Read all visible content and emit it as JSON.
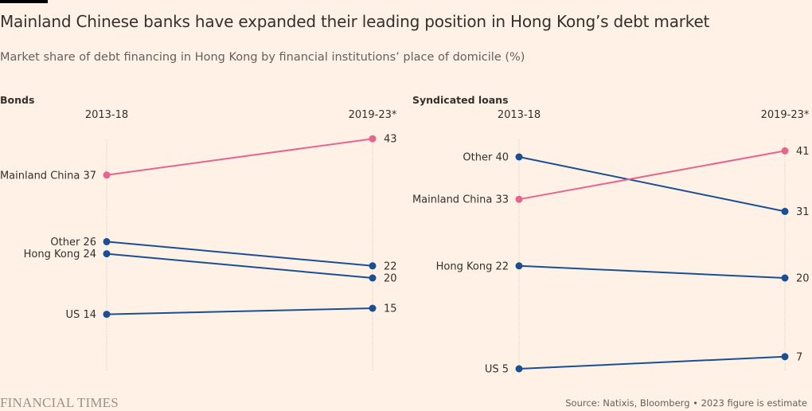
{
  "header": {
    "title": "Mainland Chinese banks have expanded their leading position in Hong Kong’s debt market",
    "subtitle": "Market share of debt financing in Hong Kong by financial institutions’ place of domicile (%)"
  },
  "footer": {
    "brand": "FINANCIAL TIMES",
    "source": "Source: Natixis, Bloomberg • 2023 figure is estimate"
  },
  "colors": {
    "background": "#fff1e5",
    "highlight": "#e8648c",
    "default": "#1a4f96",
    "gridline": "#e6d9ce"
  },
  "chart_data": [
    {
      "type": "line",
      "subtype": "slope",
      "title": "Bonds",
      "categories": [
        "2013-18",
        "2019-23*"
      ],
      "ylim": [
        0,
        45
      ],
      "series": [
        {
          "name": "Mainland China",
          "values": [
            37,
            43
          ],
          "highlight": true
        },
        {
          "name": "Other",
          "values": [
            26,
            22
          ],
          "highlight": false
        },
        {
          "name": "Hong Kong",
          "values": [
            24,
            20
          ],
          "highlight": false
        },
        {
          "name": "US",
          "values": [
            14,
            15
          ],
          "highlight": false
        }
      ]
    },
    {
      "type": "line",
      "subtype": "slope",
      "title": "Syndicated loans",
      "categories": [
        "2013-18",
        "2019-23*"
      ],
      "ylim": [
        0,
        45
      ],
      "series": [
        {
          "name": "Other",
          "values": [
            40,
            31
          ],
          "highlight": false
        },
        {
          "name": "Mainland China",
          "values": [
            33,
            41
          ],
          "highlight": true
        },
        {
          "name": "Hong Kong",
          "values": [
            22,
            20
          ],
          "highlight": false
        },
        {
          "name": "US",
          "values": [
            5,
            7
          ],
          "highlight": false
        }
      ]
    }
  ]
}
